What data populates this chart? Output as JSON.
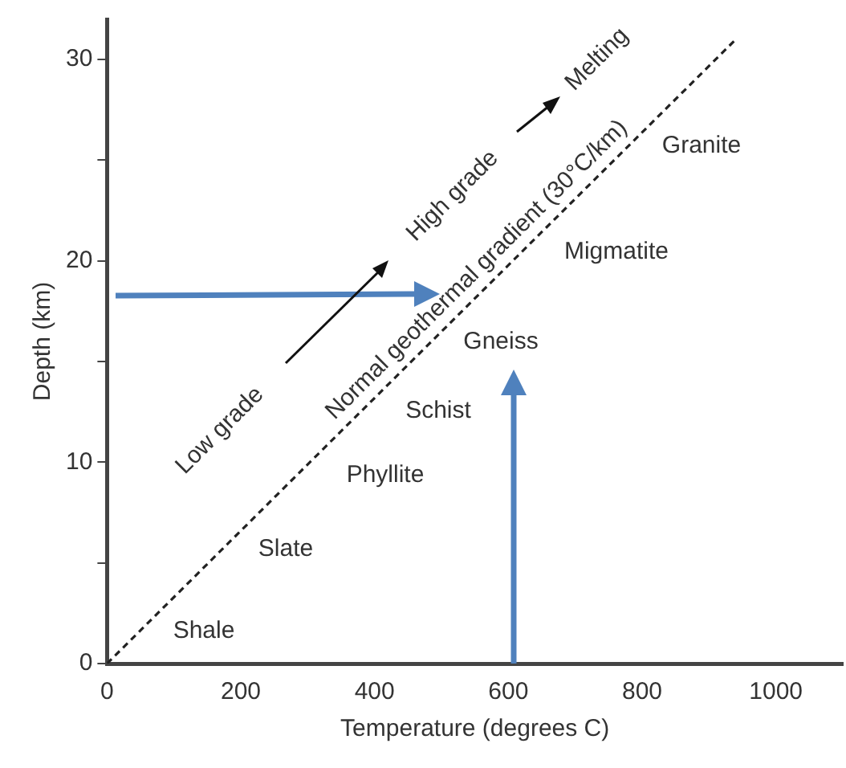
{
  "chart_data": {
    "type": "line",
    "xlabel": "Temperature (degrees C)",
    "ylabel": "Depth (km)",
    "xlim": [
      0,
      1100
    ],
    "xticks": [
      0,
      200,
      400,
      600,
      800,
      1000
    ],
    "ylim": [
      0,
      32
    ],
    "yticks": [
      0,
      {
        "value": 5,
        "label": null
      },
      10,
      {
        "value": 15,
        "label": null
      },
      20,
      {
        "value": 25,
        "label": null
      },
      30
    ],
    "series": [
      {
        "color": "#222222",
        "x": [
          0,
          940
        ],
        "values": [
          0,
          31
        ]
      }
    ],
    "line_style": "dashed",
    "marker": "none",
    "grid": false,
    "legend": false,
    "annotations": [
      "Shale",
      "Slate",
      "Phyllite",
      "Schist",
      "Gneiss",
      "Migmatite",
      "Granite",
      "Low grade",
      "High grade",
      "Melting",
      "Normal geothermal gradient (30°C/km)"
    ]
  }
}
